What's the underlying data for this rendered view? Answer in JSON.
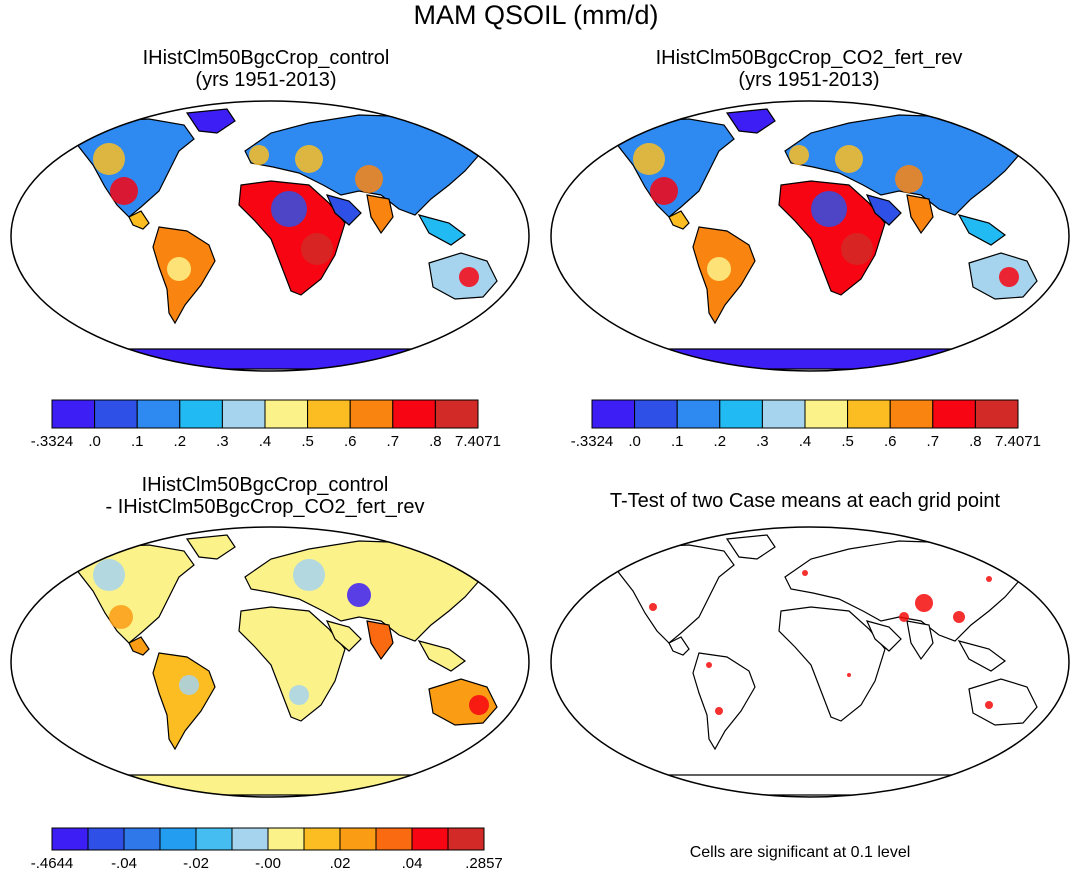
{
  "main_title": "MAM QSOIL (mm/d)",
  "panels": [
    {
      "title_line1": "IHistClm50BgcCrop_control",
      "title_line2": "(yrs 1951-2013)"
    },
    {
      "title_line1": "IHistClm50BgcCrop_CO2_fert_rev",
      "title_line2": "(yrs 1951-2013)"
    },
    {
      "title_line1": "IHistClm50BgcCrop_control",
      "title_line2": "- IHistClm50BgcCrop_CO2_fert_rev"
    },
    {
      "title_line1": "T-Test of two Case means at each grid point",
      "title_line2": ""
    }
  ],
  "colorbars": {
    "top": {
      "colors": [
        "#3d1ff5",
        "#2f50e6",
        "#2e8af0",
        "#22baf2",
        "#a6d4ee",
        "#fbf28a",
        "#fbbd22",
        "#fa8410",
        "#f70512",
        "#d22a27"
      ],
      "labels": [
        "-.3324",
        ".0",
        ".1",
        ".2",
        ".3",
        ".4",
        ".5",
        ".6",
        ".7",
        ".8",
        "7.4071"
      ]
    },
    "diff": {
      "colors": [
        "#3d1ff5",
        "#2f50e6",
        "#2e78ea",
        "#239df0",
        "#46bdf0",
        "#a6d4ee",
        "#fbf28a",
        "#fbbd22",
        "#fa9c14",
        "#fa6a10",
        "#f70512",
        "#d22a27"
      ],
      "labels": [
        "-.4644",
        "-.04",
        "-.02",
        "-.00",
        ".02",
        ".04",
        ".2857"
      ]
    }
  },
  "footnote": "Cells are significant at 0.1 level",
  "significance_color": "#f50a0a"
}
